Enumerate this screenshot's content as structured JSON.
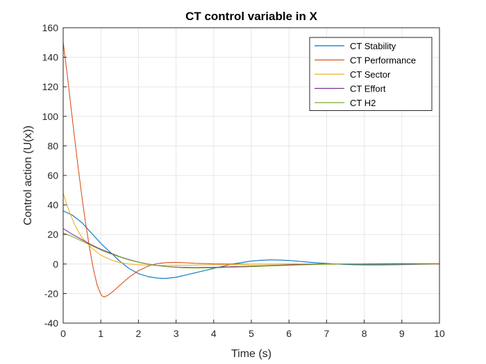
{
  "chart_data": {
    "type": "line",
    "title": "CT control variable in X",
    "xlabel": "Time (s)",
    "ylabel": "Control action (U(x))",
    "xlim": [
      0,
      10
    ],
    "ylim": [
      -40,
      160
    ],
    "xticks": [
      0,
      1,
      2,
      3,
      4,
      5,
      6,
      7,
      8,
      9,
      10
    ],
    "yticks": [
      -40,
      -20,
      0,
      20,
      40,
      60,
      80,
      100,
      120,
      140,
      160
    ],
    "grid": true,
    "legend_position": "top-right",
    "series": [
      {
        "name": "CT Stability",
        "color": "#0072BD",
        "points": [
          [
            0,
            36
          ],
          [
            0.25,
            33
          ],
          [
            0.5,
            28
          ],
          [
            0.75,
            21
          ],
          [
            1,
            14
          ],
          [
            1.25,
            8
          ],
          [
            1.5,
            2
          ],
          [
            1.75,
            -3
          ],
          [
            2,
            -6.5
          ],
          [
            2.25,
            -8.5
          ],
          [
            2.5,
            -9.5
          ],
          [
            2.7,
            -9.8
          ],
          [
            3,
            -9
          ],
          [
            3.25,
            -7.5
          ],
          [
            3.5,
            -6
          ],
          [
            3.75,
            -4.5
          ],
          [
            4,
            -3
          ],
          [
            4.25,
            -1.5
          ],
          [
            4.5,
            0
          ],
          [
            4.75,
            1
          ],
          [
            5,
            2
          ],
          [
            5.25,
            2.5
          ],
          [
            5.5,
            2.8
          ],
          [
            5.75,
            2.7
          ],
          [
            6,
            2.4
          ],
          [
            6.25,
            1.9
          ],
          [
            6.5,
            1.3
          ],
          [
            6.75,
            0.8
          ],
          [
            7,
            0.4
          ],
          [
            7.25,
            0
          ],
          [
            7.5,
            -0.3
          ],
          [
            7.75,
            -0.5
          ],
          [
            8,
            -0.6
          ],
          [
            8.5,
            -0.6
          ],
          [
            9,
            -0.4
          ],
          [
            9.5,
            -0.2
          ],
          [
            10,
            0
          ]
        ]
      },
      {
        "name": "CT Performance",
        "color": "#D95319",
        "points": [
          [
            0,
            150
          ],
          [
            0.1,
            130
          ],
          [
            0.2,
            108
          ],
          [
            0.3,
            86
          ],
          [
            0.4,
            65
          ],
          [
            0.5,
            45
          ],
          [
            0.6,
            27
          ],
          [
            0.7,
            11
          ],
          [
            0.8,
            -3
          ],
          [
            0.9,
            -14
          ],
          [
            1,
            -20.5
          ],
          [
            1.05,
            -22
          ],
          [
            1.1,
            -22.3
          ],
          [
            1.2,
            -21
          ],
          [
            1.35,
            -18
          ],
          [
            1.5,
            -14.5
          ],
          [
            1.75,
            -9
          ],
          [
            2,
            -4.5
          ],
          [
            2.25,
            -1.5
          ],
          [
            2.5,
            0.3
          ],
          [
            2.75,
            1
          ],
          [
            3,
            1.1
          ],
          [
            3.25,
            0.9
          ],
          [
            3.5,
            0.5
          ],
          [
            4,
            0.1
          ],
          [
            5,
            -0.1
          ],
          [
            6,
            0
          ],
          [
            10,
            0
          ]
        ]
      },
      {
        "name": "CT Sector",
        "color": "#EDB120",
        "points": [
          [
            0,
            48
          ],
          [
            0.1,
            40
          ],
          [
            0.2,
            33
          ],
          [
            0.3,
            27
          ],
          [
            0.4,
            22
          ],
          [
            0.5,
            18
          ],
          [
            0.75,
            11
          ],
          [
            1,
            6
          ],
          [
            1.25,
            3
          ],
          [
            1.5,
            1
          ],
          [
            1.75,
            0
          ],
          [
            2,
            -0.5
          ],
          [
            2.5,
            -1
          ],
          [
            3,
            -1
          ],
          [
            4,
            -0.5
          ],
          [
            5,
            -0.2
          ],
          [
            6,
            0
          ],
          [
            10,
            0
          ]
        ]
      },
      {
        "name": "CT Effort",
        "color": "#7E2F8E",
        "points": [
          [
            0,
            24
          ],
          [
            0.25,
            20
          ],
          [
            0.5,
            16.5
          ],
          [
            0.75,
            13
          ],
          [
            1,
            10
          ],
          [
            1.25,
            7.5
          ],
          [
            1.5,
            5
          ],
          [
            1.75,
            3
          ],
          [
            2,
            1.3
          ],
          [
            2.25,
            0
          ],
          [
            2.5,
            -1
          ],
          [
            2.75,
            -1.7
          ],
          [
            3,
            -2.1
          ],
          [
            3.25,
            -2.3
          ],
          [
            3.5,
            -2.4
          ],
          [
            4,
            -2.2
          ],
          [
            4.5,
            -1.8
          ],
          [
            5,
            -1.4
          ],
          [
            5.5,
            -1
          ],
          [
            6,
            -0.6
          ],
          [
            6.5,
            -0.3
          ],
          [
            7,
            -0.1
          ],
          [
            7.5,
            0
          ],
          [
            8,
            0.1
          ],
          [
            10,
            0.1
          ]
        ]
      },
      {
        "name": "CT H2",
        "color": "#77AC30",
        "points": [
          [
            0,
            21
          ],
          [
            0.25,
            18.5
          ],
          [
            0.5,
            15.5
          ],
          [
            0.75,
            12.5
          ],
          [
            1,
            9.5
          ],
          [
            1.25,
            7
          ],
          [
            1.5,
            4.8
          ],
          [
            1.75,
            2.8
          ],
          [
            2,
            1.2
          ],
          [
            2.25,
            -0.1
          ],
          [
            2.5,
            -1.1
          ],
          [
            2.75,
            -1.8
          ],
          [
            3,
            -2.3
          ],
          [
            3.25,
            -2.6
          ],
          [
            3.5,
            -2.7
          ],
          [
            4,
            -2.6
          ],
          [
            4.5,
            -2.2
          ],
          [
            5,
            -1.8
          ],
          [
            5.5,
            -1.3
          ],
          [
            6,
            -0.9
          ],
          [
            6.5,
            -0.5
          ],
          [
            7,
            -0.2
          ],
          [
            7.5,
            0
          ],
          [
            8,
            0.2
          ],
          [
            8.5,
            0.3
          ],
          [
            9,
            0.35
          ],
          [
            9.5,
            0.3
          ],
          [
            10,
            0.3
          ]
        ]
      }
    ]
  }
}
